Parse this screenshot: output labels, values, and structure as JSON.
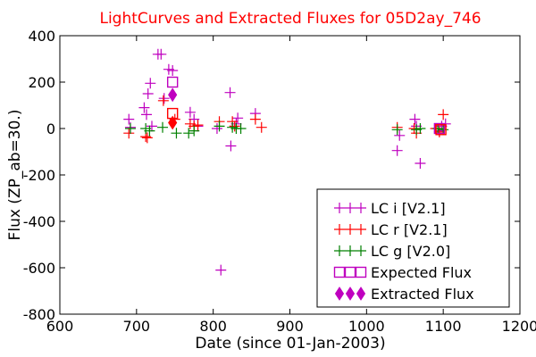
{
  "chart_data": {
    "type": "scatter",
    "title": "LightCurves and Extracted Fluxes for 05D2ay_746",
    "title_color": "#ff0000",
    "xlabel": "Date (since 01-Jan-2003)",
    "ylabel": "Flux (ZP_ab=30.)",
    "xlim": [
      600,
      1200
    ],
    "ylim": [
      -800,
      400
    ],
    "xticks": [
      600,
      700,
      800,
      900,
      1000,
      1100,
      1200
    ],
    "yticks": [
      -800,
      -600,
      -400,
      -200,
      0,
      200,
      400
    ],
    "xtick_labels": [
      "600",
      "700",
      "800",
      "900",
      "1000",
      "1100",
      "1200"
    ],
    "ytick_labels": [
      "-800",
      "-600",
      "-400",
      "-200",
      "0",
      "200",
      "400"
    ],
    "grid": false,
    "legend_position": "lower-right",
    "series": [
      {
        "name": "LC i [V2.1]",
        "marker": "plus",
        "color": "#bf00bf",
        "points": [
          [
            690,
            40
          ],
          [
            692,
            5
          ],
          [
            710,
            90
          ],
          [
            713,
            60
          ],
          [
            715,
            150
          ],
          [
            718,
            195
          ],
          [
            720,
            10
          ],
          [
            728,
            320
          ],
          [
            732,
            320
          ],
          [
            736,
            130
          ],
          [
            742,
            255
          ],
          [
            747,
            250
          ],
          [
            770,
            70
          ],
          [
            775,
            40
          ],
          [
            780,
            10
          ],
          [
            805,
            0
          ],
          [
            810,
            -610
          ],
          [
            822,
            155
          ],
          [
            823,
            -75
          ],
          [
            830,
            20
          ],
          [
            832,
            45
          ],
          [
            855,
            65
          ],
          [
            1040,
            -95
          ],
          [
            1043,
            -30
          ],
          [
            1063,
            40
          ],
          [
            1065,
            10
          ],
          [
            1070,
            -150
          ],
          [
            1095,
            -10
          ],
          [
            1098,
            10
          ],
          [
            1103,
            20
          ]
        ]
      },
      {
        "name": "LC r [V2.1]",
        "marker": "plus",
        "color": "#ff0000",
        "points": [
          [
            690,
            -20
          ],
          [
            712,
            -35
          ],
          [
            714,
            -40
          ],
          [
            735,
            120
          ],
          [
            750,
            40
          ],
          [
            770,
            20
          ],
          [
            775,
            10
          ],
          [
            780,
            15
          ],
          [
            808,
            30
          ],
          [
            825,
            30
          ],
          [
            828,
            10
          ],
          [
            855,
            40
          ],
          [
            863,
            5
          ],
          [
            1040,
            5
          ],
          [
            1062,
            0
          ],
          [
            1065,
            -20
          ],
          [
            1090,
            0
          ],
          [
            1095,
            -15
          ],
          [
            1100,
            60
          ]
        ]
      },
      {
        "name": "LC g [V2.0]",
        "marker": "plus",
        "color": "#008000",
        "points": [
          [
            692,
            0
          ],
          [
            712,
            0
          ],
          [
            717,
            -10
          ],
          [
            734,
            5
          ],
          [
            752,
            -20
          ],
          [
            768,
            -20
          ],
          [
            775,
            -10
          ],
          [
            808,
            10
          ],
          [
            825,
            5
          ],
          [
            830,
            0
          ],
          [
            836,
            0
          ],
          [
            1040,
            -5
          ],
          [
            1065,
            -5
          ],
          [
            1070,
            0
          ],
          [
            1093,
            0
          ],
          [
            1100,
            -5
          ]
        ]
      },
      {
        "name": "Expected Flux",
        "marker": "square",
        "color": "#bf00bf",
        "points": [
          [
            747,
            200
          ],
          [
            1095,
            0
          ]
        ]
      },
      {
        "name": "Extracted Flux",
        "marker": "diamond",
        "color": "#bf00bf",
        "points": [
          [
            747,
            145
          ]
        ]
      },
      {
        "name": "",
        "marker": "square",
        "color": "#ff0000",
        "points": [
          [
            747,
            65
          ],
          [
            1097,
            -5
          ]
        ]
      },
      {
        "name": "",
        "marker": "diamond",
        "color": "#ff0000",
        "points": [
          [
            747,
            25
          ]
        ]
      }
    ],
    "legend": [
      {
        "label": "LC i [V2.1]",
        "marker": "plus",
        "color": "#bf00bf"
      },
      {
        "label": "LC r [V2.1]",
        "marker": "plus",
        "color": "#ff0000"
      },
      {
        "label": "LC g [V2.0]",
        "marker": "plus",
        "color": "#008000"
      },
      {
        "label": "Expected Flux",
        "marker": "square",
        "color": "#bf00bf"
      },
      {
        "label": "Extracted Flux",
        "marker": "diamond",
        "color": "#bf00bf"
      }
    ]
  }
}
